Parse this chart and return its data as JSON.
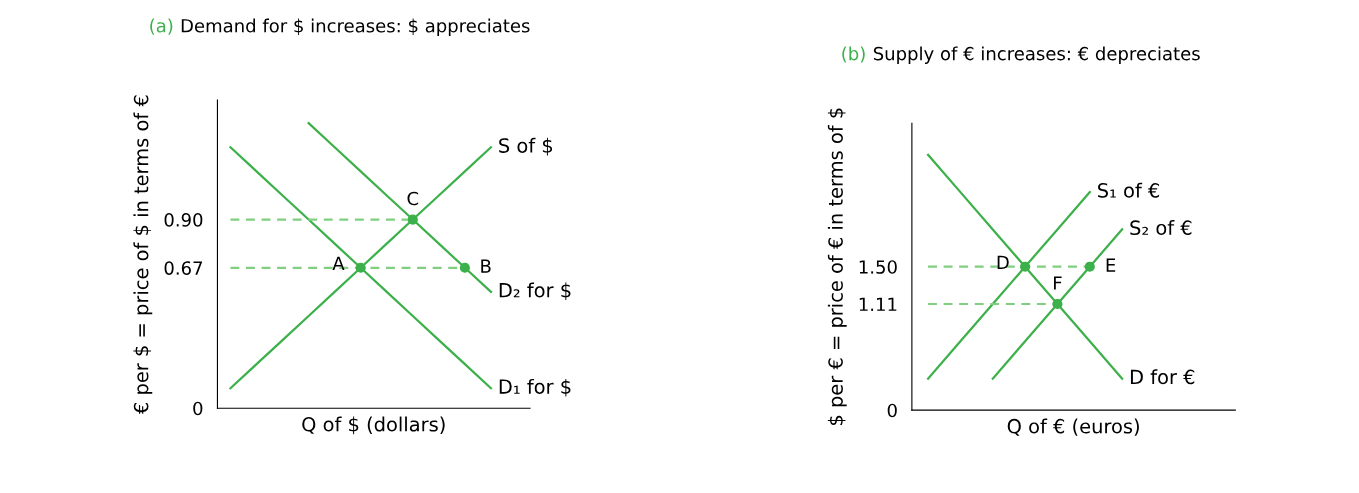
{
  "chart_data": [
    {
      "type": "line",
      "title": "(a) Demand for $ increases: $ appreciates",
      "xlabel": "Q of $ (dollars)",
      "ylabel": "€ per $ = price of $ in terms of €",
      "categories": [
        null,
        null,
        null,
        null,
        null,
        null,
        null,
        null,
        null,
        null,
        null
      ],
      "ylim": [
        0,
        1.47
      ],
      "yticks": [
        0,
        {
          "value": 0.67,
          "label": "0.67"
        },
        {
          "value": 0.9,
          "label": "0.90"
        }
      ],
      "tick_labels": "y",
      "series": [
        {
          "name": "D₁ for $",
          "color": "#3cb04a",
          "values": [
            1.245,
            1.13,
            1.015,
            0.9,
            0.785,
            0.67,
            0.555,
            0.44,
            0.325,
            0.21,
            0.095
          ]
        },
        {
          "name": "S of $",
          "color": "#3bb14b",
          "values": [
            0.095,
            0.21,
            0.325,
            0.44,
            0.555,
            0.67,
            0.785,
            0.9,
            1.015,
            1.13,
            1.245
          ]
        },
        {
          "name": "D₂ for $",
          "color": "#3db049",
          "values": [
            null,
            null,
            null,
            1.36,
            1.245,
            1.13,
            1.015,
            0.9,
            0.785,
            0.67,
            0.555
          ]
        },
        {
          "color": "#7fcf7f",
          "line_style": "dashed",
          "values": [
            0.9,
            0.9,
            0.9,
            0.9,
            0.9,
            0.9,
            0.9,
            0.9,
            null,
            null,
            null
          ]
        },
        {
          "color": "#7fcf7f",
          "line_style": "dashed",
          "values": [
            0.67,
            0.67,
            0.67,
            0.67,
            0.67,
            0.67,
            0.67,
            0.67,
            0.67,
            0.67,
            null
          ]
        },
        {
          "type": "scatter",
          "marker": "circle",
          "color": "#3cb04a",
          "values": [
            null,
            null,
            null,
            null,
            null,
            0.67,
            null,
            0.9,
            null,
            0.67,
            null
          ],
          "value_labels": [
            null,
            null,
            null,
            null,
            null,
            "A",
            null,
            "C",
            null,
            "B",
            null
          ]
        }
      ]
    },
    {
      "type": "line",
      "title": "(b) Supply of € increases: € depreciates",
      "xlabel": "Q of € (euros)",
      "ylabel": "$ per € = price of € in terms of $",
      "categories": [
        null,
        null,
        null,
        null,
        null,
        null,
        null,
        null,
        null
      ],
      "ylim": [
        0,
        3.0
      ],
      "yticks": [
        0,
        {
          "value": 1.11,
          "label": "1.11"
        },
        {
          "value": 1.5,
          "label": "1.50"
        }
      ],
      "tick_labels": "y",
      "series": [
        {
          "name": "S₁ of €",
          "color": "#3cb04a",
          "values": [
            0.33,
            0.72,
            1.11,
            1.5,
            1.89,
            2.28,
            null,
            null,
            null
          ]
        },
        {
          "name": "S₂ of €",
          "color": "#3cb04a",
          "values": [
            null,
            null,
            0.33,
            0.72,
            1.11,
            1.5,
            1.89,
            null,
            null
          ]
        },
        {
          "name": "D for €",
          "color": "#3cb04a",
          "values": [
            2.67,
            2.28,
            1.89,
            1.5,
            1.11,
            0.72,
            0.33,
            null,
            null
          ]
        },
        {
          "color": "#7fcf7f",
          "line_style": "dashed",
          "values": [
            1.5,
            1.5,
            1.5,
            1.5,
            1.5,
            1.5,
            null,
            null,
            null
          ]
        },
        {
          "color": "#7fcf7f",
          "line_style": "dashed",
          "values": [
            1.11,
            1.11,
            1.11,
            1.11,
            1.11,
            null,
            null,
            null,
            null
          ]
        },
        {
          "type": "scatter",
          "marker": "circle",
          "color": "#3cb04a",
          "values": [
            null,
            null,
            null,
            1.5,
            1.11,
            1.5,
            null,
            null,
            null
          ],
          "value_labels": [
            null,
            null,
            null,
            "D",
            "F",
            "E",
            null,
            null,
            null
          ]
        }
      ]
    }
  ]
}
